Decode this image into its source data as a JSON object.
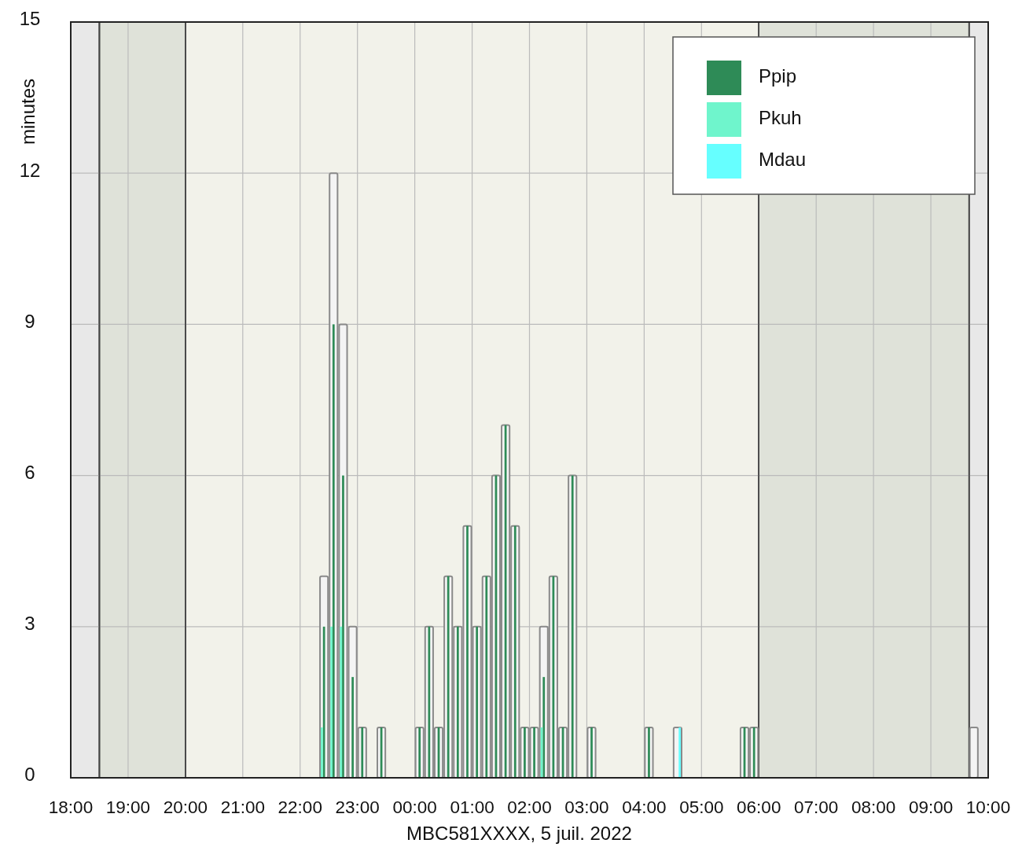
{
  "chart_data": {
    "type": "bar",
    "xlabel": "MBC581XXXX, 5 juil. 2022",
    "ylabel": "minutes",
    "xlim": [
      "2022-07-05T18:00",
      "2022-07-06T10:00"
    ],
    "xticks": [
      {
        "value": "2022-07-05T18:00",
        "label": "18:00"
      },
      {
        "value": "2022-07-05T19:00",
        "label": "19:00"
      },
      {
        "value": "2022-07-05T20:00",
        "label": "20:00"
      },
      {
        "value": "2022-07-05T21:00",
        "label": "21:00"
      },
      {
        "value": "2022-07-05T22:00",
        "label": "22:00"
      },
      {
        "value": "2022-07-05T23:00",
        "label": "23:00"
      },
      {
        "value": "2022-07-06T00:00",
        "label": "00:00"
      },
      {
        "value": "2022-07-06T01:00",
        "label": "01:00"
      },
      {
        "value": "2022-07-06T02:00",
        "label": "02:00"
      },
      {
        "value": "2022-07-06T03:00",
        "label": "03:00"
      },
      {
        "value": "2022-07-06T04:00",
        "label": "04:00"
      },
      {
        "value": "2022-07-06T05:00",
        "label": "05:00"
      },
      {
        "value": "2022-07-06T06:00",
        "label": "06:00"
      },
      {
        "value": "2022-07-06T07:00",
        "label": "07:00"
      },
      {
        "value": "2022-07-06T08:00",
        "label": "08:00"
      },
      {
        "value": "2022-07-06T09:00",
        "label": "09:00"
      },
      {
        "value": "2022-07-06T10:00",
        "label": "10:00"
      }
    ],
    "ylim": [
      0,
      15
    ],
    "yticks": [
      0,
      3,
      6,
      9,
      12,
      15
    ],
    "grid": true,
    "legend": "top right",
    "bands": [
      {
        "axis": "x",
        "from": "2022-07-05T18:00",
        "to": "2022-07-05T18:30",
        "color": "#e8e8e8"
      },
      {
        "axis": "x",
        "from": "2022-07-05T18:30",
        "to": "2022-07-05T20:00",
        "color": "#dfe2d9"
      },
      {
        "axis": "x",
        "from": "2022-07-05T20:00",
        "to": "2022-07-06T06:00",
        "color": "#f2f2ea"
      },
      {
        "axis": "x",
        "from": "2022-07-06T06:00",
        "to": "2022-07-06T09:40",
        "color": "#dfe2d9"
      },
      {
        "axis": "x",
        "from": "2022-07-06T09:40",
        "to": "2022-07-06T10:00",
        "color": "#e8e8e8"
      }
    ],
    "series": [
      {
        "color": "#8a8a8a",
        "x": [
          "2022-07-05T22:25",
          "2022-07-05T22:35",
          "2022-07-05T22:45",
          "2022-07-05T22:55",
          "2022-07-05T23:05",
          "2022-07-05T23:25",
          "2022-07-06T00:05",
          "2022-07-06T00:15",
          "2022-07-06T00:25",
          "2022-07-06T00:35",
          "2022-07-06T00:45",
          "2022-07-06T00:55",
          "2022-07-06T01:05",
          "2022-07-06T01:15",
          "2022-07-06T01:25",
          "2022-07-06T01:35",
          "2022-07-06T01:45",
          "2022-07-06T01:55",
          "2022-07-06T02:05",
          "2022-07-06T02:15",
          "2022-07-06T02:25",
          "2022-07-06T02:35",
          "2022-07-06T02:45",
          "2022-07-06T03:05",
          "2022-07-06T04:05",
          "2022-07-06T04:35",
          "2022-07-06T05:45",
          "2022-07-06T05:55",
          "2022-07-06T09:45"
        ],
        "values": [
          4,
          12,
          9,
          3,
          1,
          1,
          1,
          3,
          1,
          4,
          3,
          5,
          3,
          4,
          6,
          7,
          5,
          1,
          1,
          3,
          4,
          1,
          6,
          1,
          1,
          1,
          1,
          1,
          1
        ]
      },
      {
        "name": "Ppip",
        "color": "#2e8b57",
        "x": [
          "2022-07-05T22:25",
          "2022-07-05T22:35",
          "2022-07-05T22:45",
          "2022-07-05T22:55",
          "2022-07-05T23:05",
          "2022-07-05T23:25",
          "2022-07-06T00:05",
          "2022-07-06T00:15",
          "2022-07-06T00:25",
          "2022-07-06T00:35",
          "2022-07-06T00:45",
          "2022-07-06T00:55",
          "2022-07-06T01:05",
          "2022-07-06T01:15",
          "2022-07-06T01:25",
          "2022-07-06T01:35",
          "2022-07-06T01:45",
          "2022-07-06T01:55",
          "2022-07-06T02:05",
          "2022-07-06T02:15",
          "2022-07-06T02:25",
          "2022-07-06T02:35",
          "2022-07-06T02:45",
          "2022-07-06T03:05",
          "2022-07-06T04:05",
          "2022-07-06T05:45",
          "2022-07-06T05:55"
        ],
        "values": [
          3,
          9,
          6,
          2,
          1,
          1,
          1,
          3,
          1,
          4,
          3,
          5,
          3,
          4,
          6,
          7,
          5,
          1,
          1,
          2,
          4,
          1,
          6,
          1,
          1,
          1,
          1
        ]
      },
      {
        "name": "Pkuh",
        "color": "#6ff5cc",
        "x": [
          "2022-07-05T22:25",
          "2022-07-05T22:35",
          "2022-07-05T22:45",
          "2022-07-06T02:15"
        ],
        "values": [
          1,
          3,
          3,
          1
        ]
      },
      {
        "name": "Mdau",
        "color": "#66ffff",
        "x": [
          "2022-07-06T04:35"
        ],
        "values": [
          1
        ]
      }
    ]
  }
}
